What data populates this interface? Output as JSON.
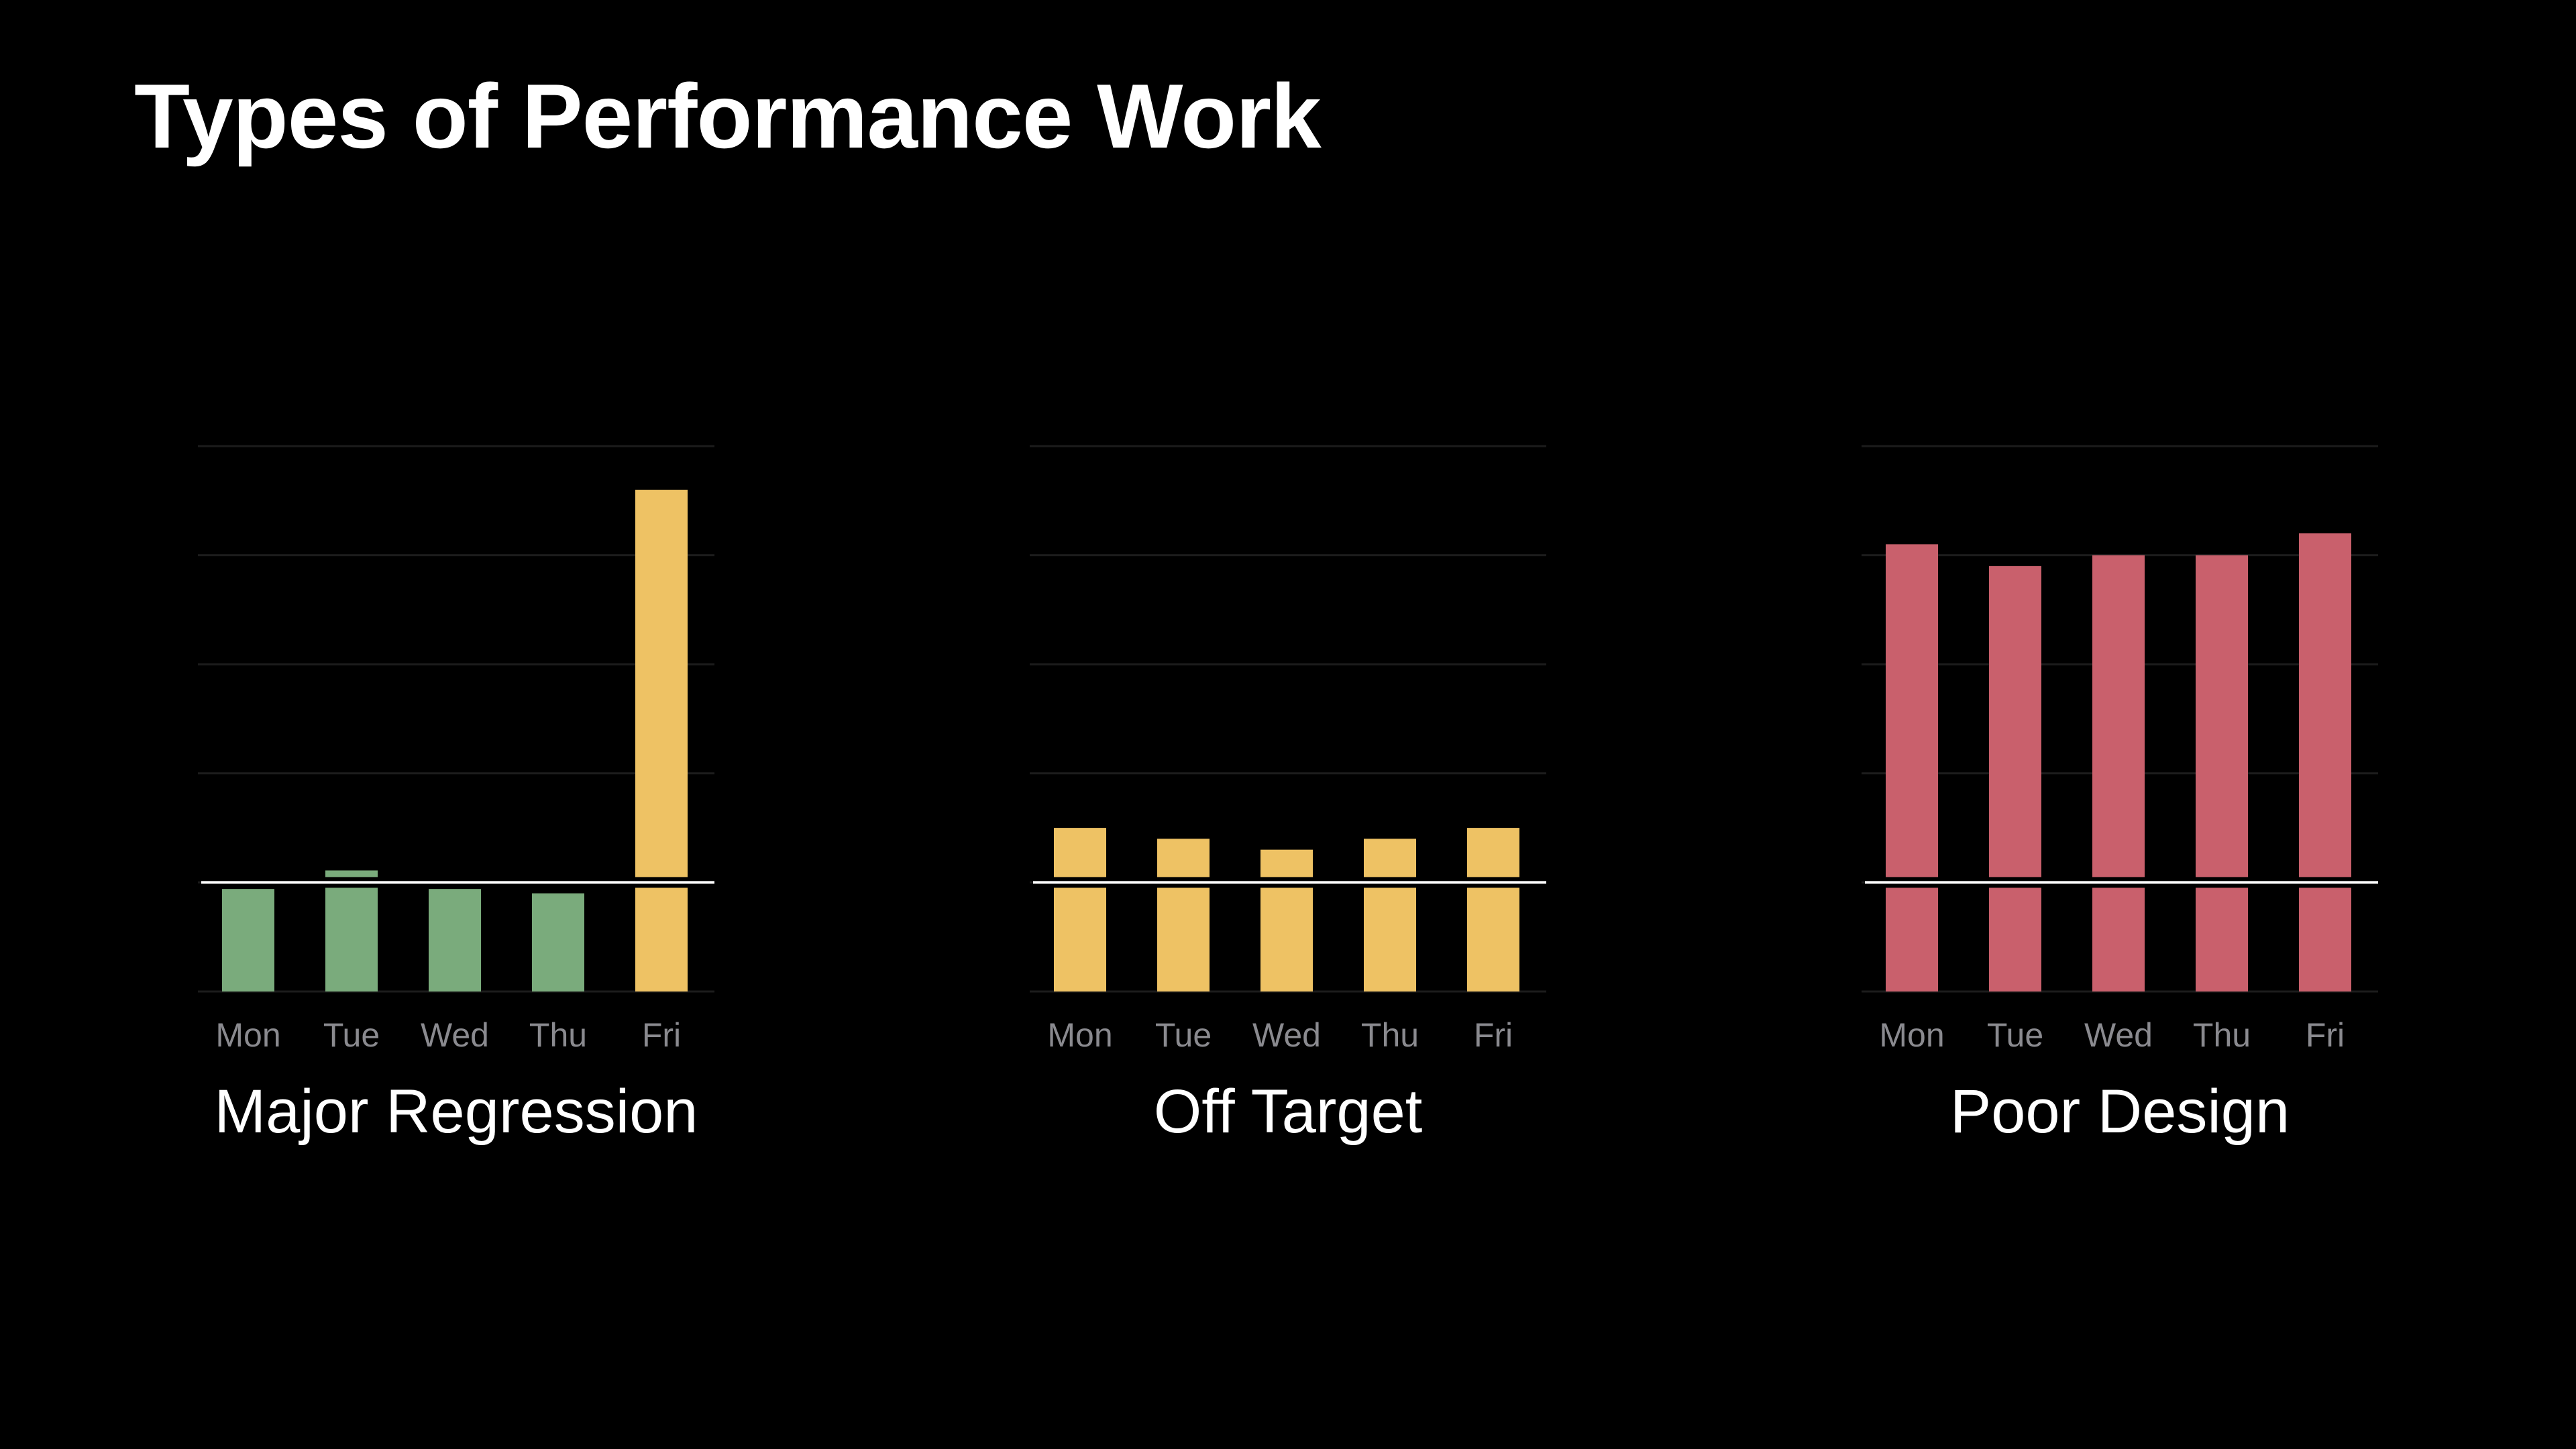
{
  "slide": {
    "title": "Types of Performance Work"
  },
  "chart_data": [
    {
      "type": "bar",
      "caption": "Major Regression",
      "categories": [
        "Mon",
        "Tue",
        "Wed",
        "Thu",
        "Fri"
      ],
      "values": [
        0.94,
        1.11,
        0.94,
        0.9,
        4.6
      ],
      "colors": [
        "#7aab7c",
        "#7aab7c",
        "#7aab7c",
        "#7aab7c",
        "#eec264"
      ],
      "target_line": 1.0,
      "ylim": [
        0,
        5
      ],
      "grid": true
    },
    {
      "type": "bar",
      "caption": "Off Target",
      "categories": [
        "Mon",
        "Tue",
        "Wed",
        "Thu",
        "Fri"
      ],
      "values": [
        1.5,
        1.4,
        1.3,
        1.4,
        1.5
      ],
      "colors": [
        "#eec264",
        "#eec264",
        "#eec264",
        "#eec264",
        "#eec264"
      ],
      "target_line": 1.0,
      "ylim": [
        0,
        5
      ],
      "grid": true
    },
    {
      "type": "bar",
      "caption": "Poor Design",
      "categories": [
        "Mon",
        "Tue",
        "Wed",
        "Thu",
        "Fri"
      ],
      "values": [
        4.1,
        3.9,
        4.0,
        4.0,
        4.2
      ],
      "colors": [
        "#c9606c",
        "#c9606c",
        "#c9606c",
        "#c9606c",
        "#c9606c"
      ],
      "target_line": 1.0,
      "ylim": [
        0,
        5
      ],
      "grid": true
    }
  ],
  "colors": {
    "background": "#000000",
    "title": "#ffffff",
    "grid": "#1c1c1c",
    "target_line": "#ffffff",
    "axis_label": "#8a8a8f"
  }
}
